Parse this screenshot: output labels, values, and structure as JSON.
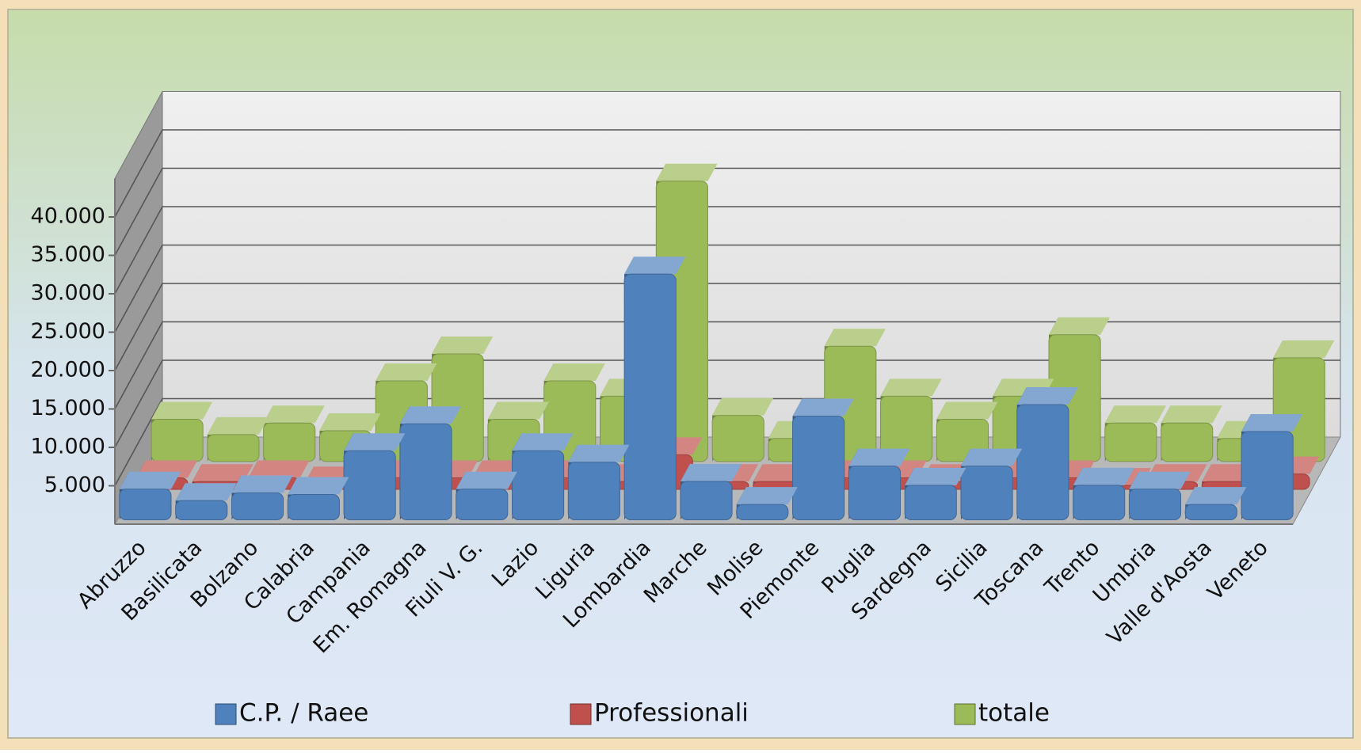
{
  "chart_data": {
    "type": "bar3d",
    "categories": [
      "Abruzzo",
      "Basilicata",
      "Bolzano",
      "Calabria",
      "Campania",
      "Em. Romagna",
      "Fiuli V. G.",
      "Lazio",
      "Liguria",
      "Lombardia",
      "Marche",
      "Molise",
      "Piemonte",
      "Puglia",
      "Sardegna",
      "Sicilia",
      "Toscana",
      "Trento",
      "Umbria",
      "Valle d'Aosta",
      "Veneto"
    ],
    "series": [
      {
        "name": "C.P. / Raee",
        "color": "#4f81bd",
        "values": [
          4000,
          2500,
          3500,
          3300,
          9000,
          12500,
          4000,
          9000,
          7500,
          32000,
          5000,
          2000,
          13500,
          7000,
          4500,
          7000,
          15000,
          4500,
          4000,
          2000,
          11500
        ]
      },
      {
        "name": "Professionali",
        "color": "#c0504d",
        "values": [
          1500,
          1000,
          1500,
          700,
          1500,
          1500,
          1500,
          1500,
          1000,
          4500,
          1000,
          1000,
          1500,
          1500,
          1000,
          1500,
          1500,
          500,
          1000,
          1000,
          2000
        ]
      },
      {
        "name": "totale",
        "color": "#9bbb59",
        "values": [
          5500,
          3500,
          5000,
          4000,
          10500,
          14000,
          5500,
          10500,
          8500,
          36500,
          6000,
          3000,
          15000,
          8500,
          5500,
          8500,
          16500,
          5000,
          5000,
          3000,
          13500
        ]
      }
    ],
    "ylim": [
      0,
      45000
    ],
    "yticks": [
      {
        "value": 5000,
        "label": "5.000"
      },
      {
        "value": 10000,
        "label": "10.000"
      },
      {
        "value": 15000,
        "label": "15.000"
      },
      {
        "value": 20000,
        "label": "20.000"
      },
      {
        "value": 25000,
        "label": "25.000"
      },
      {
        "value": 30000,
        "label": "30.000"
      },
      {
        "value": 35000,
        "label": "35.000"
      },
      {
        "value": 40000,
        "label": "40.000"
      }
    ],
    "grid": true,
    "legend": "bottom"
  }
}
